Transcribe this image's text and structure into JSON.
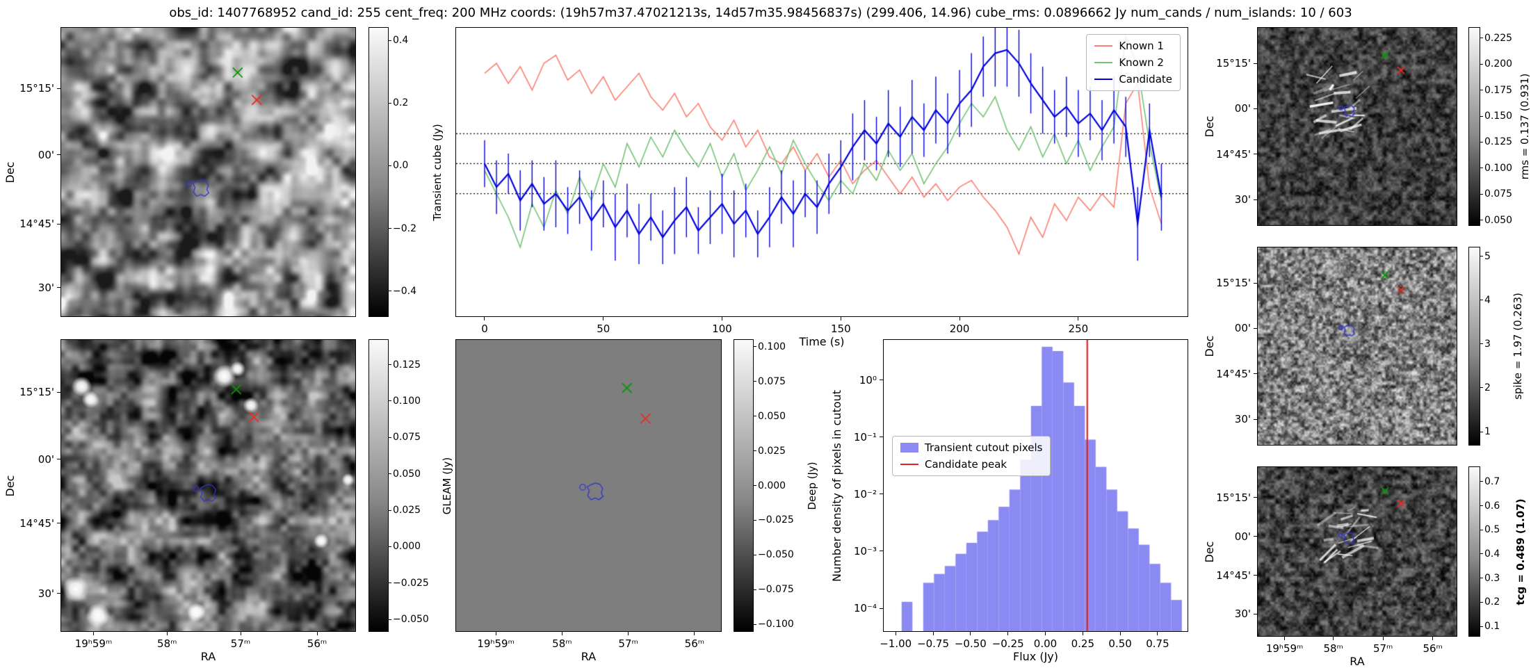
{
  "title": "obs_id: 1407768952 cand_id: 255 cent_freq: 200 MHz coords: (19h57m37.47021213s, 14d57m35.98456837s) (299.406, 14.96) cube_rms: 0.0896662 Jy num_cands / num_islands: 10 / 603",
  "colors": {
    "known1": "#fa8072",
    "known2": "#74c476",
    "candidate": "#0000dd",
    "hist_bar": "#8a8af2",
    "candidate_peak_line": "#dd2525",
    "marker_green": "#0a930a",
    "marker_red": "#ec2d20",
    "contour_blue": "#3333cc",
    "deep_gray": "#7e7e7e"
  },
  "chart_data": [
    {
      "id": "lightcurve",
      "type": "line",
      "xlabel": "Time (s)",
      "xlim": [
        -12,
        296
      ],
      "ylim": [
        -2.28,
        2.03
      ],
      "xticks": {
        "vals": [
          0,
          50,
          100,
          150,
          200,
          250
        ],
        "labels": [
          "0",
          "50",
          "100",
          "150",
          "200",
          "250"
        ]
      },
      "hlines": [
        0.448,
        0.0,
        -0.448
      ],
      "x": [
        0,
        5,
        10,
        15,
        20,
        25,
        30,
        35,
        40,
        45,
        50,
        55,
        60,
        65,
        70,
        75,
        80,
        85,
        90,
        95,
        100,
        105,
        110,
        115,
        120,
        125,
        130,
        135,
        140,
        145,
        150,
        155,
        160,
        165,
        170,
        175,
        180,
        185,
        190,
        195,
        200,
        205,
        210,
        215,
        220,
        225,
        230,
        235,
        240,
        245,
        250,
        255,
        260,
        265,
        270,
        275,
        280,
        285
      ],
      "series": [
        {
          "name": "Known 1",
          "color_key": "known1",
          "lw": 1.6,
          "values": [
            1.35,
            1.5,
            1.2,
            1.45,
            1.1,
            1.5,
            1.62,
            1.25,
            1.4,
            1.05,
            1.3,
            0.95,
            1.15,
            1.35,
            1.0,
            0.8,
            1.05,
            0.7,
            0.9,
            0.55,
            0.35,
            0.65,
            0.25,
            0.5,
            0.1,
            0.0,
            0.25,
            -0.1,
            0.15,
            -0.2,
            0.05,
            -0.3,
            -0.1,
            0.05,
            -0.2,
            -0.45,
            -0.2,
            -0.5,
            -0.3,
            -0.55,
            -0.35,
            -0.25,
            -0.5,
            -0.7,
            -0.95,
            -1.35,
            -0.8,
            -1.1,
            -0.6,
            -0.85,
            -0.5,
            -0.7,
            -0.45,
            -0.65,
            0.9,
            1.2,
            -0.35,
            -0.9
          ]
        },
        {
          "name": "Known 2",
          "color_key": "known2",
          "lw": 1.6,
          "values": [
            -0.1,
            -0.45,
            -0.8,
            -1.25,
            -0.6,
            -0.95,
            -0.4,
            -0.75,
            -0.2,
            -0.55,
            0.0,
            -0.35,
            0.3,
            -0.05,
            0.4,
            0.1,
            0.5,
            0.2,
            -0.05,
            0.3,
            -0.2,
            0.15,
            -0.4,
            -0.1,
            0.25,
            -0.15,
            0.35,
            0.0,
            -0.3,
            -0.55,
            -0.25,
            -0.45,
            0.0,
            -0.25,
            0.2,
            -0.1,
            0.15,
            -0.3,
            0.0,
            0.25,
            0.6,
            0.9,
            0.7,
            1.0,
            0.5,
            0.2,
            0.55,
            0.1,
            0.45,
            0.0,
            0.35,
            -0.1,
            0.25,
            0.55,
            1.9,
            1.45,
            0.3,
            -0.55
          ]
        },
        {
          "name": "Candidate",
          "color_key": "candidate",
          "lw": 2.2,
          "values": [
            0.0,
            -0.35,
            -0.15,
            -0.55,
            -0.3,
            -0.6,
            -0.45,
            -0.7,
            -0.5,
            -0.85,
            -0.6,
            -0.95,
            -0.7,
            -1.05,
            -0.8,
            -1.1,
            -0.85,
            -0.65,
            -1.0,
            -0.8,
            -0.6,
            -0.9,
            -0.7,
            -1.05,
            -0.8,
            -0.5,
            -0.75,
            -0.45,
            -0.65,
            -0.3,
            -0.05,
            0.25,
            0.5,
            0.3,
            0.6,
            0.4,
            0.7,
            0.5,
            0.8,
            0.6,
            0.9,
            1.1,
            1.45,
            1.65,
            1.7,
            1.5,
            1.2,
            0.95,
            0.7,
            0.85,
            0.6,
            0.75,
            0.5,
            0.8,
            0.55,
            -0.9,
            0.5,
            -0.5
          ],
          "yerr": [
            0.35,
            0.4,
            0.3,
            0.45,
            0.35,
            0.4,
            0.5,
            0.35,
            0.4,
            0.45,
            0.35,
            0.5,
            0.4,
            0.45,
            0.35,
            0.4,
            0.5,
            0.45,
            0.35,
            0.4,
            0.45,
            0.5,
            0.4,
            0.35,
            0.45,
            0.4,
            0.5,
            0.35,
            0.4,
            0.45,
            0.4,
            0.5,
            0.45,
            0.4,
            0.5,
            0.45,
            0.55,
            0.4,
            0.5,
            0.45,
            0.5,
            0.55,
            0.45,
            0.5,
            0.55,
            0.5,
            0.45,
            0.5,
            0.4,
            0.45,
            0.5,
            0.4,
            0.45,
            0.5,
            0.45,
            0.55,
            0.4,
            0.5
          ]
        }
      ]
    },
    {
      "id": "histogram",
      "type": "bar",
      "xlabel": "Flux (Jy)",
      "ylabel": "Number density of pixels in cutout",
      "ylabel_off": 58,
      "xlim": [
        -1.08,
        0.95
      ],
      "ylim_log": [
        -4.4,
        0.7
      ],
      "xticks": {
        "vals": [
          -1.0,
          -0.75,
          -0.5,
          -0.25,
          0.0,
          0.25,
          0.5,
          0.75
        ],
        "labels": [
          "−1.00",
          "−0.75",
          "−0.50",
          "−0.25",
          "0.00",
          "0.25",
          "0.50",
          "0.75"
        ]
      },
      "yticks": {
        "exps": [
          0,
          -1,
          -2,
          -3,
          -4
        ],
        "labels": [
          "10⁰",
          "10⁻¹",
          "10⁻²",
          "10⁻³",
          "10⁻⁴"
        ]
      },
      "bin_width": 0.072,
      "bin_left": [
        -0.96,
        -0.888,
        -0.816,
        -0.744,
        -0.672,
        -0.6,
        -0.528,
        -0.456,
        -0.384,
        -0.312,
        -0.24,
        -0.168,
        -0.096,
        -0.024,
        0.048,
        0.12,
        0.192,
        0.264,
        0.336,
        0.408,
        0.48,
        0.552,
        0.624,
        0.696,
        0.768,
        0.84
      ],
      "densities": [
        0.00013,
        0,
        0.00028,
        0.0004,
        0.00055,
        0.0009,
        0.0014,
        0.0022,
        0.0035,
        0.006,
        0.012,
        0.04,
        0.35,
        3.8,
        3.2,
        0.9,
        0.35,
        0.09,
        0.03,
        0.012,
        0.005,
        0.0025,
        0.0013,
        0.0006,
        0.00028,
        0.00014
      ],
      "vline_x": 0.28,
      "legend": [
        {
          "swatch": "patch",
          "color_key": "hist_bar",
          "label": "Transient cutout pixels"
        },
        {
          "swatch": "line",
          "color_key": "candidate_peak_line",
          "label": "Candidate peak"
        }
      ]
    },
    {
      "id": "transient_image",
      "type": "heatmap",
      "ylabel": "Dec",
      "ylabel_off": 64,
      "yticks": {
        "labels": [
          "15°15'",
          "00'",
          "14°45'",
          "30'"
        ],
        "fracs": [
          0.21,
          0.44,
          0.68,
          0.9
        ]
      },
      "markers": {
        "green_x": [
          0.6,
          0.155
        ],
        "red_x": [
          0.665,
          0.25
        ],
        "contour": [
          0.475,
          0.555
        ]
      },
      "marker_size": 7,
      "contour_size": 12,
      "noise": {
        "seed": 11,
        "cell": 30,
        "cell2": 12,
        "amp2": 0.45,
        "lo": 0.1,
        "hi": 0.95,
        "contrast": 1.5
      },
      "colorbar": {
        "label": "Transient cube (Jy)",
        "label_off": 62,
        "range": [
          -0.48,
          0.44
        ],
        "tick_vals": [
          0.4,
          0.2,
          0.0,
          -0.2,
          -0.4
        ],
        "tick_labels": [
          "0.4",
          "0.2",
          "0.0",
          "−0.2",
          "−0.4"
        ]
      }
    },
    {
      "id": "gleam_image",
      "type": "heatmap",
      "ylabel": "Dec",
      "ylabel_off": 64,
      "xlabel": "RA",
      "yticks": {
        "labels": [
          "15°15'",
          "00'",
          "14°45'",
          "30'"
        ],
        "fracs": [
          0.18,
          0.41,
          0.63,
          0.87
        ]
      },
      "xticks": {
        "labels": [
          "19ʰ59ᵐ",
          "58ᵐ",
          "57ᵐ",
          "56ᵐ"
        ],
        "fracs": [
          0.11,
          0.36,
          0.61,
          0.87
        ]
      },
      "markers": {
        "green_x": [
          0.595,
          0.17
        ],
        "red_x": [
          0.655,
          0.265
        ],
        "contour": [
          0.5,
          0.525
        ]
      },
      "marker_size": 7,
      "contour_size": 12,
      "noise": {
        "seed": 22,
        "cell": 26,
        "cell2": 10,
        "amp2": 0.5,
        "lo": 0.02,
        "hi": 0.78,
        "contrast": 1.4
      },
      "sources": [
        [
          0.07,
          0.16,
          0.035
        ],
        [
          0.1,
          0.205,
          0.03
        ],
        [
          0.555,
          0.125,
          0.04
        ],
        [
          0.6,
          0.1,
          0.027
        ],
        [
          0.645,
          0.225,
          0.028
        ],
        [
          0.05,
          0.855,
          0.045
        ],
        [
          0.125,
          0.945,
          0.042
        ],
        [
          0.46,
          0.935,
          0.032
        ],
        [
          0.885,
          0.69,
          0.026
        ],
        [
          0.975,
          0.48,
          0.022
        ]
      ],
      "colorbar": {
        "label": "GLEAM (Jy)",
        "label_off": 76,
        "range": [
          -0.058,
          0.142
        ],
        "tick_vals": [
          0.125,
          0.1,
          0.075,
          0.05,
          0.025,
          0.0,
          -0.025,
          -0.05
        ],
        "tick_labels": [
          "0.125",
          "0.100",
          "0.075",
          "0.050",
          "0.025",
          "0.000",
          "−0.025",
          "−0.050"
        ]
      }
    },
    {
      "id": "deep_image",
      "type": "heatmap",
      "flat_key": "deep_gray",
      "xlabel": "RA",
      "xticks": {
        "labels": [
          "19ʰ59ᵐ",
          "58ᵐ",
          "57ᵐ",
          "56ᵐ"
        ],
        "fracs": [
          0.15,
          0.4,
          0.65,
          0.9
        ]
      },
      "markers": {
        "green_x": [
          0.645,
          0.165
        ],
        "red_x": [
          0.715,
          0.27
        ],
        "contour": [
          0.525,
          0.52
        ]
      },
      "marker_size": 7,
      "contour_size": 12,
      "colorbar": {
        "label": "Deep (Jy)",
        "label_off": 76,
        "range": [
          -0.105,
          0.105
        ],
        "tick_vals": [
          0.1,
          0.075,
          0.05,
          0.025,
          0.0,
          -0.025,
          -0.05,
          -0.075,
          -0.1
        ],
        "tick_labels": [
          "0.100",
          "0.075",
          "0.050",
          "0.025",
          "0.000",
          "−0.025",
          "−0.050",
          "−0.075",
          "−0.100"
        ]
      }
    },
    {
      "id": "rms_image",
      "type": "heatmap",
      "ylabel": "Dec",
      "ylabel_off": 60,
      "yticks": {
        "labels": [
          "15°15'",
          "00'",
          "14°45'",
          "30'"
        ],
        "fracs": [
          0.18,
          0.41,
          0.64,
          0.87
        ]
      },
      "markers": {
        "green_x": [
          0.64,
          0.14
        ],
        "red_x": [
          0.72,
          0.215
        ],
        "contour": [
          0.46,
          0.42
        ]
      },
      "marker_size": 5,
      "contour_size": 8,
      "noise": {
        "seed": 33,
        "cell": 7,
        "cell2": 3,
        "amp2": 0.55,
        "lo": 0.03,
        "hi": 0.46,
        "contrast": 1.25
      },
      "streaks": {
        "cx": 0.42,
        "cy": 0.38,
        "n": 26,
        "seed": 7
      },
      "colorbar": {
        "label": "rms = 0.137 (0.931)",
        "label_off": 56,
        "range": [
          0.045,
          0.235
        ],
        "tick_vals": [
          0.225,
          0.2,
          0.175,
          0.15,
          0.125,
          0.1,
          0.075,
          0.05
        ],
        "tick_labels": [
          "0.225",
          "0.200",
          "0.175",
          "0.150",
          "0.125",
          "0.100",
          "0.075",
          "0.050"
        ]
      }
    },
    {
      "id": "spike_image",
      "type": "heatmap",
      "ylabel": "Dec",
      "ylabel_off": 60,
      "yticks": {
        "labels": [
          "15°15'",
          "00'",
          "14°45'",
          "30'"
        ],
        "fracs": [
          0.18,
          0.41,
          0.64,
          0.87
        ]
      },
      "markers": {
        "green_x": [
          0.64,
          0.14
        ],
        "red_x": [
          0.72,
          0.215
        ],
        "contour": [
          0.46,
          0.42
        ]
      },
      "marker_size": 5,
      "contour_size": 8,
      "noise": {
        "seed": 44,
        "cell": 5,
        "cell2": 2.5,
        "amp2": 0.6,
        "lo": 0.12,
        "hi": 0.88,
        "contrast": 1.15
      },
      "colorbar": {
        "label": "spike = 1.97 (0.263)",
        "label_off": 46,
        "range": [
          0.7,
          5.2
        ],
        "tick_vals": [
          5,
          4,
          3,
          2,
          1
        ],
        "tick_labels": [
          "5",
          "4",
          "3",
          "2",
          "1"
        ]
      }
    },
    {
      "id": "tcg_image",
      "type": "heatmap",
      "ylabel": "Dec",
      "ylabel_off": 60,
      "xlabel": "RA",
      "yticks": {
        "labels": [
          "15°15'",
          "00'",
          "14°45'",
          "30'"
        ],
        "fracs": [
          0.18,
          0.41,
          0.64,
          0.87
        ]
      },
      "xticks": {
        "labels": [
          "19ʰ59ᵐ",
          "58ᵐ",
          "57ᵐ",
          "56ᵐ"
        ],
        "fracs": [
          0.135,
          0.38,
          0.63,
          0.88
        ]
      },
      "markers": {
        "green_x": [
          0.64,
          0.14
        ],
        "red_x": [
          0.72,
          0.215
        ],
        "contour": [
          0.46,
          0.42
        ]
      },
      "marker_size": 5,
      "contour_size": 8,
      "noise": {
        "seed": 55,
        "cell": 7,
        "cell2": 3,
        "amp2": 0.55,
        "lo": 0.03,
        "hi": 0.5,
        "contrast": 1.25
      },
      "streaks": {
        "cx": 0.43,
        "cy": 0.4,
        "n": 22,
        "seed": 9
      },
      "colorbar": {
        "label": "tcg = 0.489 (1.07)",
        "bold": true,
        "label_off": 50,
        "range": [
          0.06,
          0.76
        ],
        "tick_vals": [
          0.7,
          0.6,
          0.5,
          0.4,
          0.3,
          0.2,
          0.1
        ],
        "tick_labels": [
          "0.7",
          "0.6",
          "0.5",
          "0.4",
          "0.3",
          "0.2",
          "0.1"
        ]
      }
    }
  ]
}
